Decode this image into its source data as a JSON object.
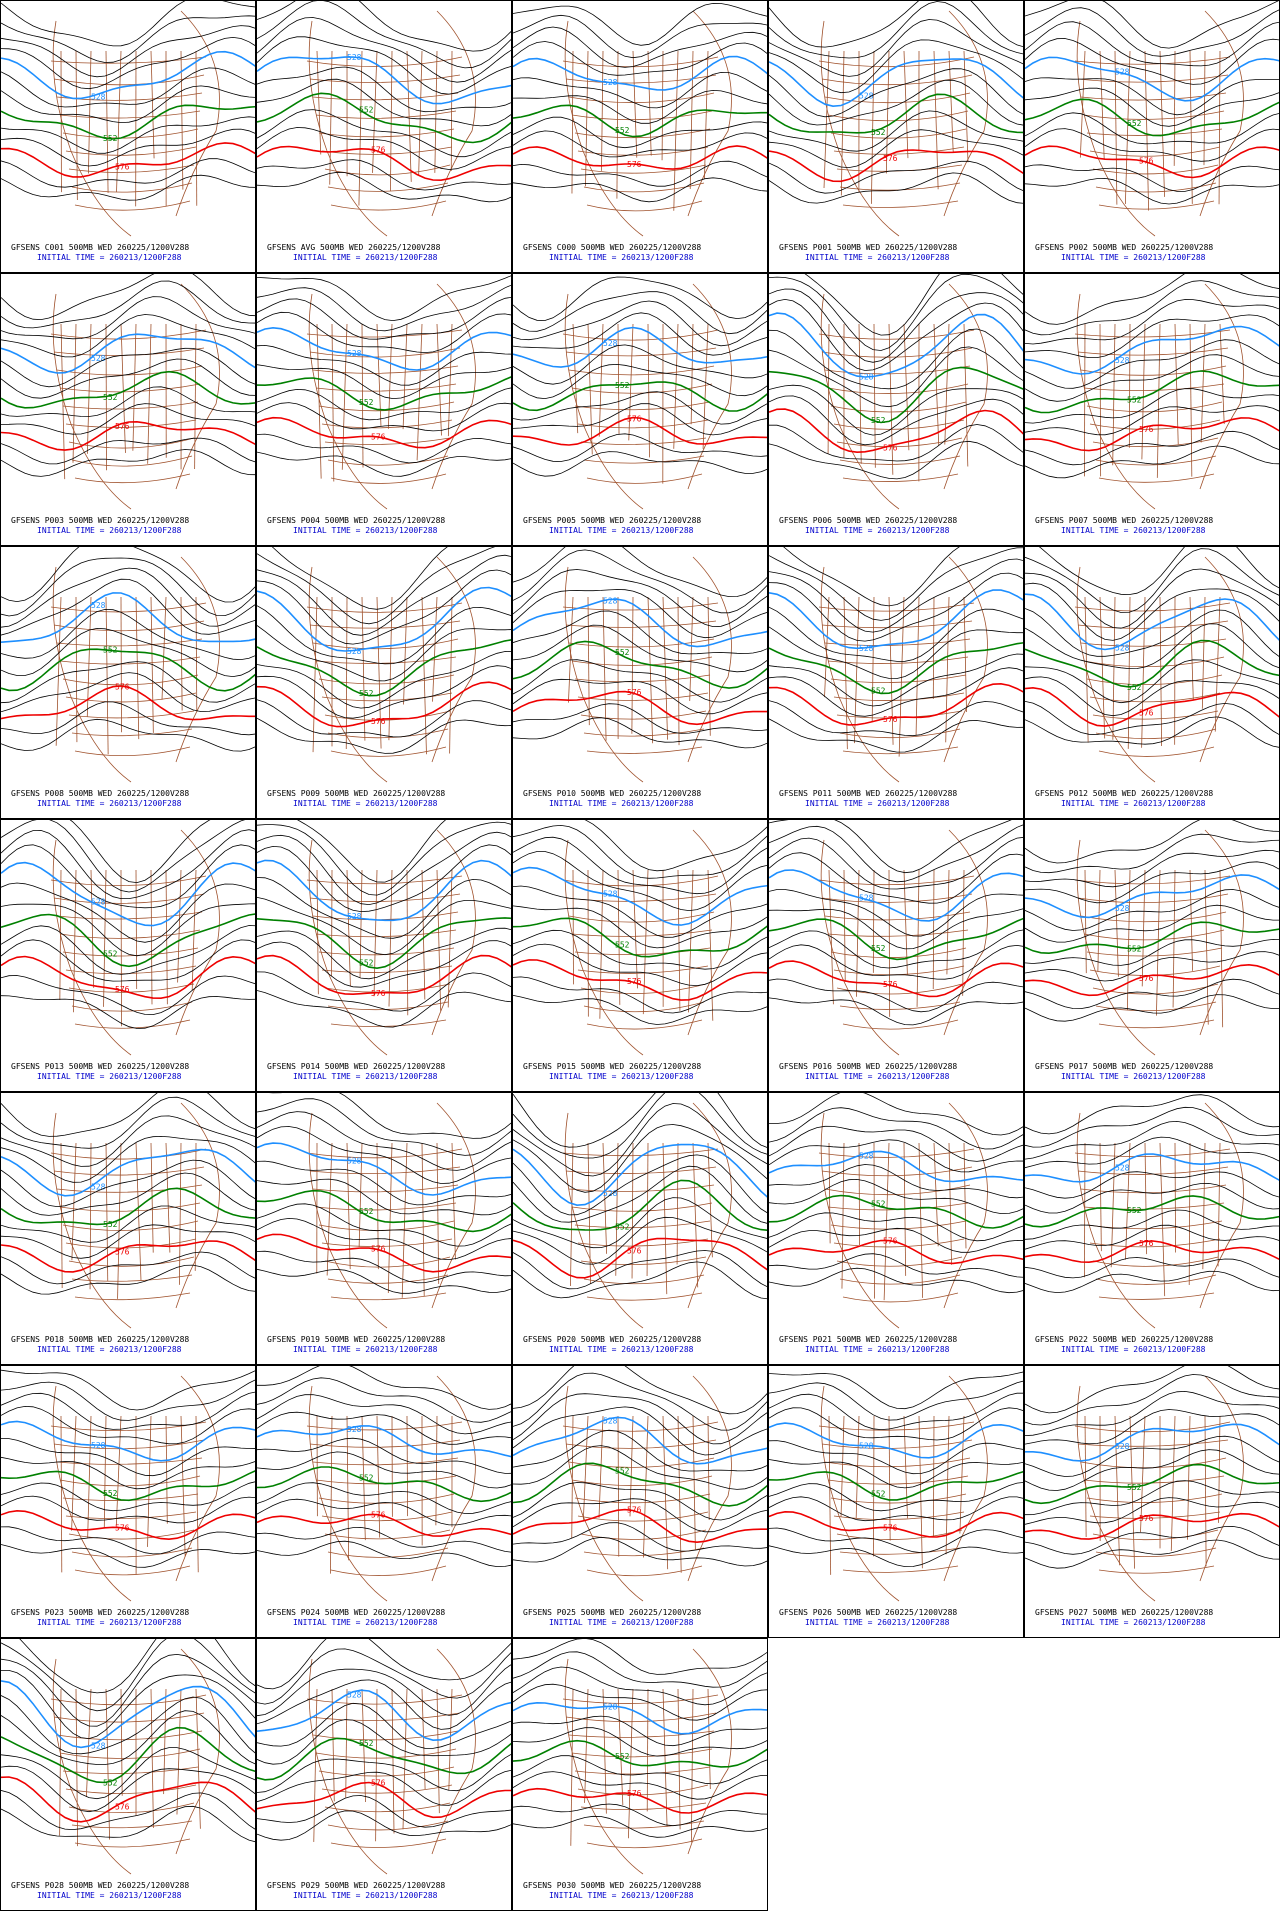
{
  "contours": [
    {
      "label": "528",
      "color": "#1e8fff"
    },
    {
      "label": "552",
      "color": "#008000"
    },
    {
      "label": "576",
      "color": "#ee0000"
    }
  ],
  "panels": [
    {
      "title": "GFSENS C001 500MB WED 260225/1200V288",
      "init": "INITIAL TIME = 260213/1200F288"
    },
    {
      "title": "GFSENS AVG 500MB WED 260225/1200V288",
      "init": "INITIAL TIME = 260213/1200F288"
    },
    {
      "title": "GFSENS C000 500MB WED 260225/1200V288",
      "init": "INITIAL TIME = 260213/1200F288"
    },
    {
      "title": "GFSENS P001 500MB WED 260225/1200V288",
      "init": "INITIAL TIME = 260213/1200F288"
    },
    {
      "title": "GFSENS P002 500MB WED 260225/1200V288",
      "init": "INITIAL TIME = 260213/1200F288"
    },
    {
      "title": "GFSENS P003 500MB WED 260225/1200V288",
      "init": "INITIAL TIME = 260213/1200F288"
    },
    {
      "title": "GFSENS P004 500MB WED 260225/1200V288",
      "init": "INITIAL TIME = 260213/1200F288"
    },
    {
      "title": "GFSENS P005 500MB WED 260225/1200V288",
      "init": "INITIAL TIME = 260213/1200F288"
    },
    {
      "title": "GFSENS P006 500MB WED 260225/1200V288",
      "init": "INITIAL TIME = 260213/1200F288"
    },
    {
      "title": "GFSENS P007 500MB WED 260225/1200V288",
      "init": "INITIAL TIME = 260213/1200F288"
    },
    {
      "title": "GFSENS P008 500MB WED 260225/1200V288",
      "init": "INITIAL TIME = 260213/1200F288"
    },
    {
      "title": "GFSENS P009 500MB WED 260225/1200V288",
      "init": "INITIAL TIME = 260213/1200F288"
    },
    {
      "title": "GFSENS P010 500MB WED 260225/1200V288",
      "init": "INITIAL TIME = 260213/1200F288"
    },
    {
      "title": "GFSENS P011 500MB WED 260225/1200V288",
      "init": "INITIAL TIME = 260213/1200F288"
    },
    {
      "title": "GFSENS P012 500MB WED 260225/1200V288",
      "init": "INITIAL TIME = 260213/1200F288"
    },
    {
      "title": "GFSENS P013 500MB WED 260225/1200V288",
      "init": "INITIAL TIME = 260213/1200F288"
    },
    {
      "title": "GFSENS P014 500MB WED 260225/1200V288",
      "init": "INITIAL TIME = 260213/1200F288"
    },
    {
      "title": "GFSENS P015 500MB WED 260225/1200V288",
      "init": "INITIAL TIME = 260213/1200F288"
    },
    {
      "title": "GFSENS P016 500MB WED 260225/1200V288",
      "init": "INITIAL TIME = 260213/1200F288"
    },
    {
      "title": "GFSENS P017 500MB WED 260225/1200V288",
      "init": "INITIAL TIME = 260213/1200F288"
    },
    {
      "title": "GFSENS P018 500MB WED 260225/1200V288",
      "init": "INITIAL TIME = 260213/1200F288"
    },
    {
      "title": "GFSENS P019 500MB WED 260225/1200V288",
      "init": "INITIAL TIME = 260213/1200F288"
    },
    {
      "title": "GFSENS P020 500MB WED 260225/1200V288",
      "init": "INITIAL TIME = 260213/1200F288"
    },
    {
      "title": "GFSENS P021 500MB WED 260225/1200V288",
      "init": "INITIAL TIME = 260213/1200F288"
    },
    {
      "title": "GFSENS P022 500MB WED 260225/1200V288",
      "init": "INITIAL TIME = 260213/1200F288"
    },
    {
      "title": "GFSENS P023 500MB WED 260225/1200V288",
      "init": "INITIAL TIME = 260213/1200F288"
    },
    {
      "title": "GFSENS P024 500MB WED 260225/1200V288",
      "init": "INITIAL TIME = 260213/1200F288"
    },
    {
      "title": "GFSENS P025 500MB WED 260225/1200V288",
      "init": "INITIAL TIME = 260213/1200F288"
    },
    {
      "title": "GFSENS P026 500MB WED 260225/1200V288",
      "init": "INITIAL TIME = 260213/1200F288"
    },
    {
      "title": "GFSENS P027 500MB WED 260225/1200V288",
      "init": "INITIAL TIME = 260213/1200F288"
    },
    {
      "title": "GFSENS P028 500MB WED 260225/1200V288",
      "init": "INITIAL TIME = 260213/1200F288"
    },
    {
      "title": "GFSENS P029 500MB WED 260225/1200V288",
      "init": "INITIAL TIME = 260213/1200F288"
    },
    {
      "title": "GFSENS P030 500MB WED 260225/1200V288",
      "init": "INITIAL TIME = 260213/1200F288"
    }
  ]
}
